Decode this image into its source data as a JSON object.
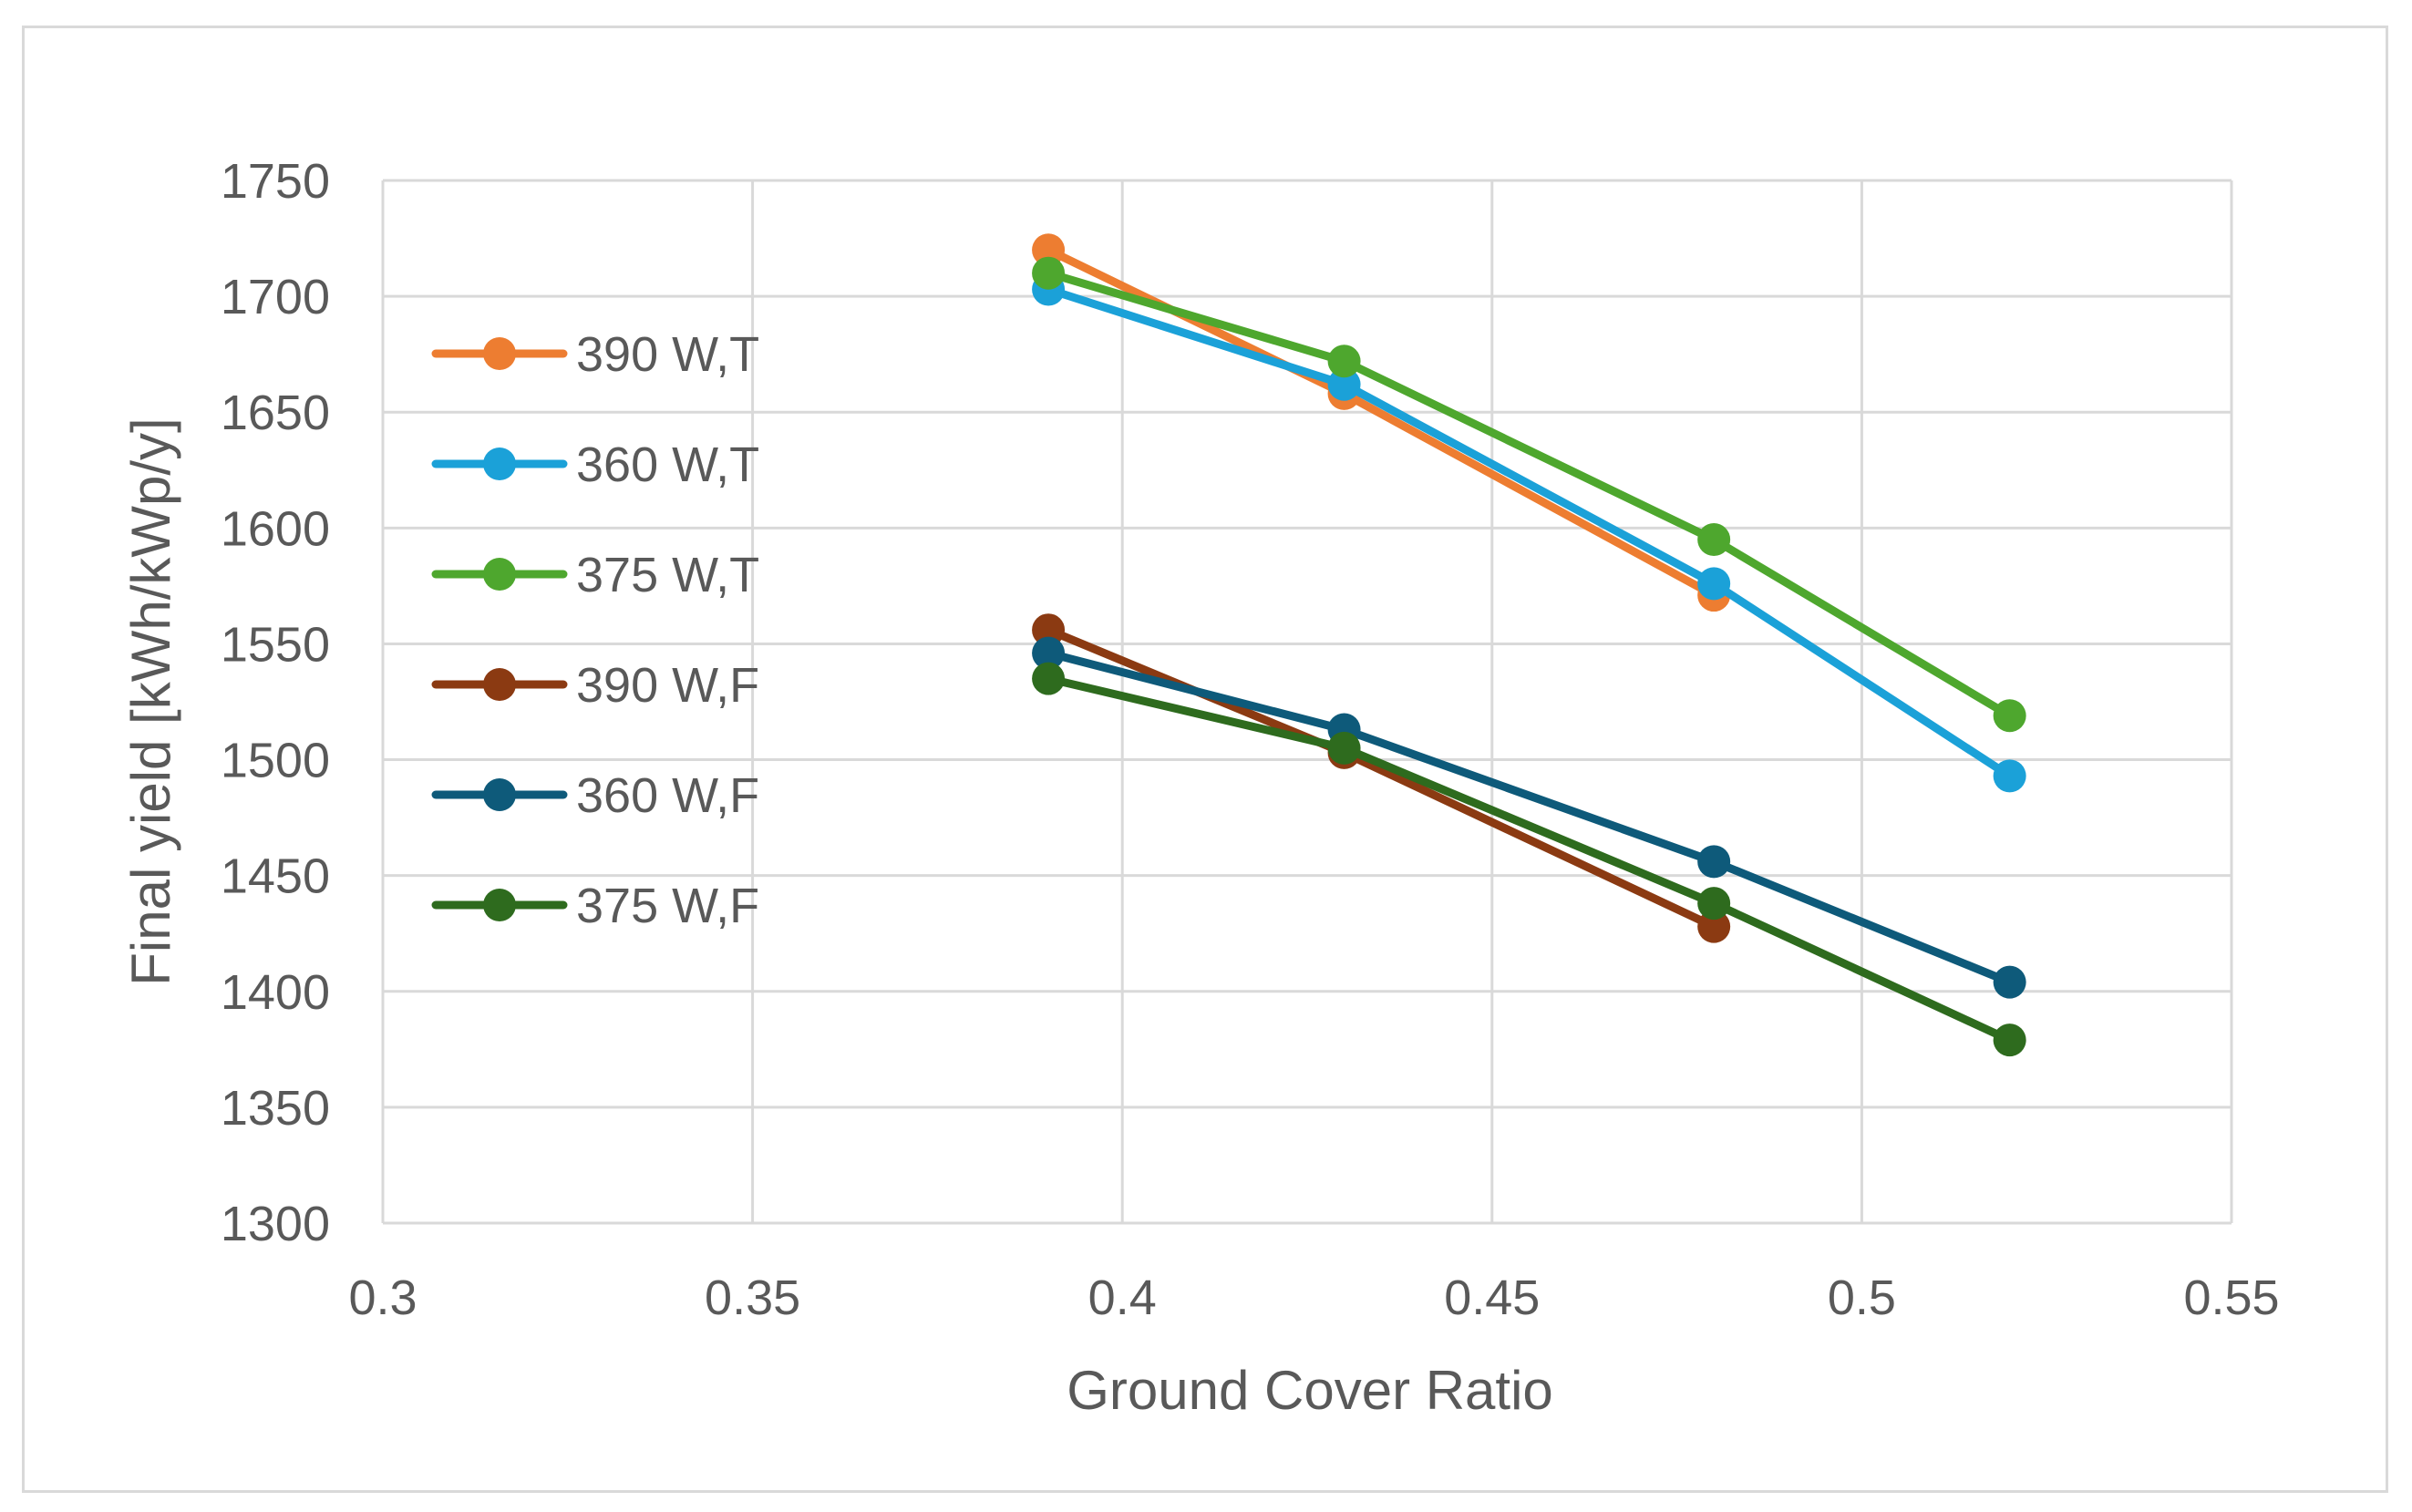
{
  "chart_data": {
    "type": "scatter",
    "title": "",
    "xlabel": "Ground Cover Ratio",
    "ylabel": "Final yield [kWh/kWp/y]",
    "xlim": [
      0.3,
      0.55
    ],
    "ylim": [
      1300,
      1750
    ],
    "xticks": [
      0.3,
      0.35,
      0.4,
      0.45,
      0.5,
      0.55
    ],
    "xtick_labels": [
      "0.3",
      "0.35",
      "0.4",
      "0.45",
      "0.5",
      "0.55"
    ],
    "yticks": [
      1300,
      1350,
      1400,
      1450,
      1500,
      1550,
      1600,
      1650,
      1700,
      1750
    ],
    "ytick_labels": [
      "1300",
      "1350",
      "1400",
      "1450",
      "1500",
      "1550",
      "1600",
      "1650",
      "1700",
      "1750"
    ],
    "grid": true,
    "legend_position": "left",
    "series": [
      {
        "name": "390 W,T",
        "color": "#ED7D31",
        "x": [
          0.39,
          0.43,
          0.48
        ],
        "y": [
          1720,
          1658,
          1571
        ]
      },
      {
        "name": "360 W,T",
        "color": "#1BA1D8",
        "x": [
          0.39,
          0.43,
          0.48,
          0.52
        ],
        "y": [
          1703,
          1662,
          1576,
          1493
        ]
      },
      {
        "name": "375 W,T",
        "color": "#4EA72E",
        "x": [
          0.39,
          0.43,
          0.48,
          0.52
        ],
        "y": [
          1710,
          1672,
          1595,
          1519
        ]
      },
      {
        "name": "390 W,F",
        "color": "#8B3A12",
        "x": [
          0.39,
          0.43,
          0.48
        ],
        "y": [
          1556,
          1503,
          1428
        ]
      },
      {
        "name": "360 W,F",
        "color": "#0E5A7A",
        "x": [
          0.39,
          0.43,
          0.48,
          0.52
        ],
        "y": [
          1546,
          1513,
          1456,
          1404
        ]
      },
      {
        "name": "375 W,F",
        "color": "#2E6B1E",
        "x": [
          0.39,
          0.43,
          0.48,
          0.52
        ],
        "y": [
          1535,
          1505,
          1438,
          1379
        ]
      }
    ]
  }
}
